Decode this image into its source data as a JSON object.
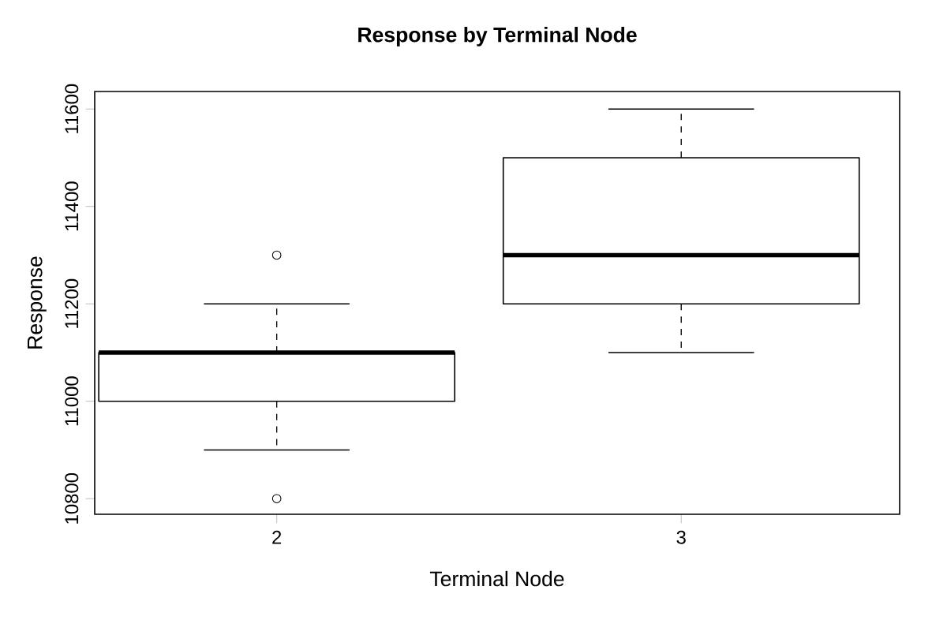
{
  "chart_data": {
    "type": "box",
    "title": "Response by Terminal Node",
    "xlabel": "Terminal Node",
    "ylabel": "Response",
    "categories": [
      "2",
      "3"
    ],
    "ylim": [
      10768,
      11636
    ],
    "yticks": [
      10800,
      11000,
      11200,
      11400,
      11600
    ],
    "boxes": [
      {
        "low": 10900,
        "q1": 11000,
        "median": 11100,
        "q3": 11100,
        "high": 11200,
        "outliers": [
          10800,
          11300
        ]
      },
      {
        "low": 11100,
        "q1": 11200,
        "median": 11300,
        "q3": 11500,
        "high": 11600
      }
    ]
  }
}
